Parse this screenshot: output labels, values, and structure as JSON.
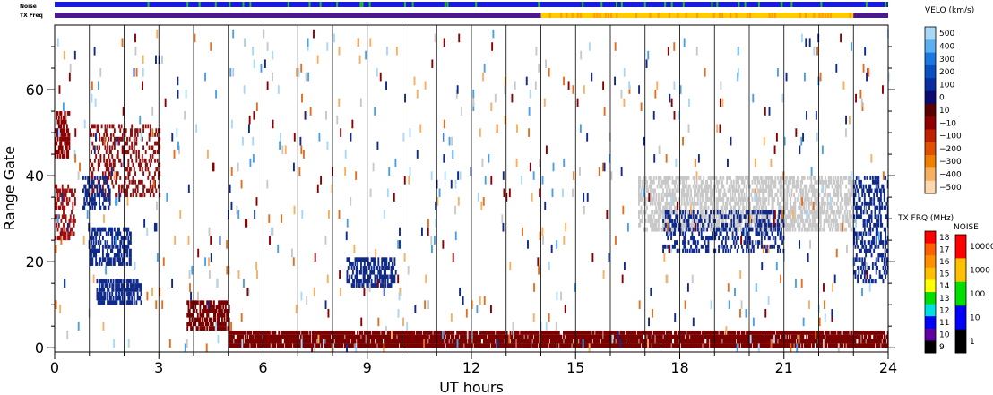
{
  "strip_labels": {
    "noise": "Noise",
    "tx_freq": "TX Freq"
  },
  "chart_data": {
    "type": "scatter",
    "title": "",
    "xlabel": "UT hours",
    "ylabel": "Range Gate",
    "xlim": [
      0,
      24
    ],
    "ylim": [
      -1,
      75
    ],
    "x_ticks": [
      "0",
      "3",
      "6",
      "9",
      "12",
      "15",
      "18",
      "21",
      "24"
    ],
    "x_tick_values": [
      0,
      3,
      6,
      9,
      12,
      15,
      18,
      21,
      24
    ],
    "y_ticks": [
      "0",
      "20",
      "40",
      "60"
    ],
    "y_tick_values": [
      0,
      20,
      40,
      60
    ],
    "hour_gridlines": true,
    "regions": [
      {
        "name": "ground-scatter-near",
        "x": [
          5.0,
          24.0
        ],
        "y": [
          0,
          4
        ],
        "color": "#7a0000",
        "density": 0.9
      },
      {
        "name": "negative-early",
        "x": [
          0.0,
          0.4
        ],
        "y": [
          44,
          55
        ],
        "color": "#8b0000",
        "density": 0.7
      },
      {
        "name": "negative-early-2",
        "x": [
          0.0,
          0.6
        ],
        "y": [
          25,
          38
        ],
        "color": "#a01010",
        "density": 0.5
      },
      {
        "name": "arc-a",
        "x": [
          1.0,
          3.0
        ],
        "y": [
          35,
          52
        ],
        "color": "#8b1010",
        "density": 0.3
      },
      {
        "name": "positive-1",
        "x": [
          1.2,
          2.5
        ],
        "y": [
          10,
          16
        ],
        "color": "#102a8a",
        "density": 0.7
      },
      {
        "name": "positive-2",
        "x": [
          1.0,
          2.2
        ],
        "y": [
          19,
          28
        ],
        "color": "#102a8a",
        "density": 0.5
      },
      {
        "name": "positive-3",
        "x": [
          0.8,
          1.6
        ],
        "y": [
          32,
          40
        ],
        "color": "#102a8a",
        "density": 0.5
      },
      {
        "name": "low-band-early",
        "x": [
          3.8,
          5.0
        ],
        "y": [
          4,
          11
        ],
        "color": "#7a0000",
        "density": 0.7
      },
      {
        "name": "blob-9h",
        "x": [
          8.4,
          9.8
        ],
        "y": [
          14,
          21
        ],
        "color": "#102a8a",
        "density": 0.6
      },
      {
        "name": "gs-late",
        "x": [
          16.8,
          23.0
        ],
        "y": [
          27,
          40
        ],
        "color": "#c8c8c8",
        "density": 0.55
      },
      {
        "name": "pos-late",
        "x": [
          17.5,
          21.0
        ],
        "y": [
          22,
          32
        ],
        "color": "#102a8a",
        "density": 0.35
      },
      {
        "name": "late-edge",
        "x": [
          23.0,
          24.0
        ],
        "y": [
          15,
          40
        ],
        "color": "#102a8a",
        "density": 0.4
      }
    ],
    "noise_strip": {
      "base": "#1a1ae0",
      "accent": "#20c020"
    },
    "tx_freq_strip": {
      "base": "#4a1a8a",
      "accent": "#ffcc00",
      "accent_x": [
        14.0,
        23.0
      ]
    }
  },
  "legend_velo": {
    "title": "VELO (km/s)",
    "labels": [
      "500",
      "400",
      "300",
      "200",
      "100",
      "0",
      "10",
      "−10",
      "−100",
      "−200",
      "−300",
      "−400",
      "−500"
    ],
    "colors": [
      "#a8d8f8",
      "#5ab0f0",
      "#1a78e0",
      "#0a50c0",
      "#0a2ea0",
      "#0a0a70",
      "#5a0000",
      "#900000",
      "#c02000",
      "#e05000",
      "#f08000",
      "#f8b060",
      "#fcd8b0"
    ]
  },
  "legend_txfreq": {
    "title": "TX FRQ (MHz)",
    "labels": [
      "18",
      "17",
      "16",
      "15",
      "14",
      "13",
      "12",
      "11",
      "10",
      "9"
    ],
    "colors": [
      "#ff0000",
      "#ff6000",
      "#ff9000",
      "#ffc000",
      "#ffff00",
      "#00e000",
      "#00e0e0",
      "#0000ff",
      "#6000a0",
      "#000000"
    ]
  },
  "legend_noise": {
    "title": "NOISE",
    "labels": [
      "10000",
      "1000",
      "100",
      "10",
      "1"
    ],
    "colors": [
      "#ff0000",
      "#ffc000",
      "#00e000",
      "#0000ff",
      "#000000"
    ]
  }
}
